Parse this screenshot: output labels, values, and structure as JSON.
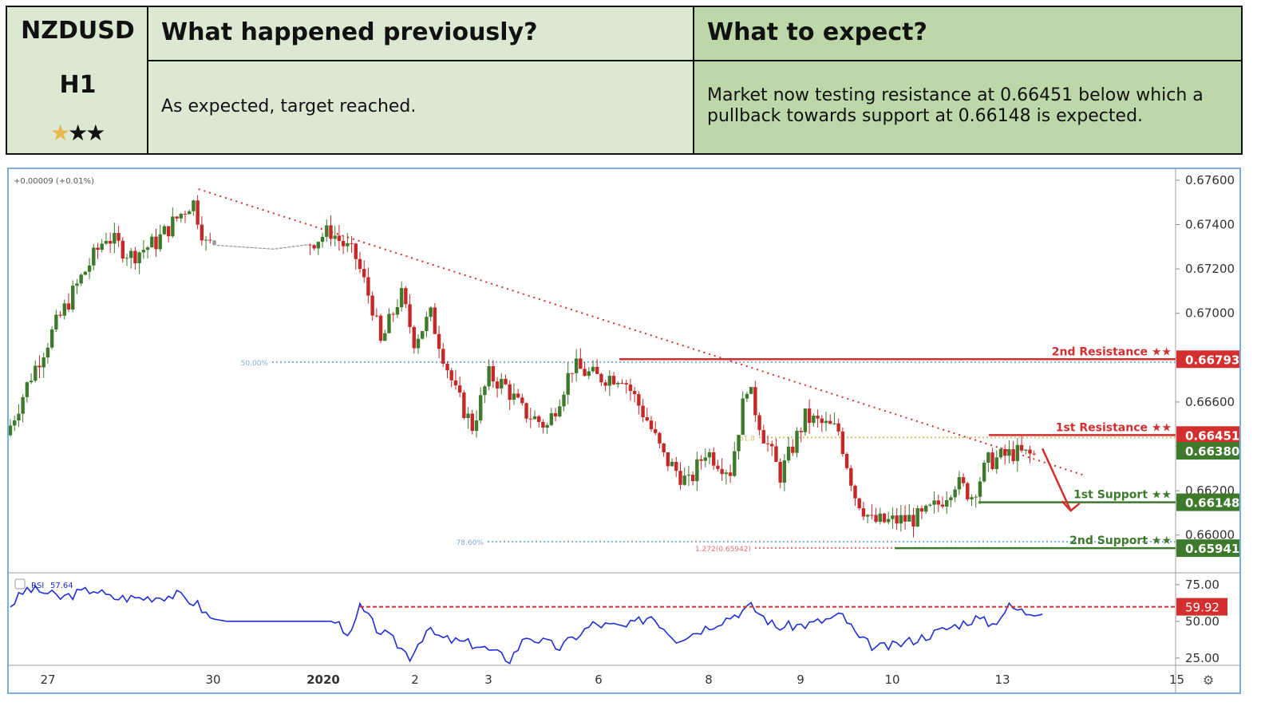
{
  "header": {
    "pair": "NZDUSD",
    "timeframe": "H1",
    "stars": [
      "★",
      "★",
      "★"
    ],
    "star_colors": [
      "#e8b64a",
      "#111111",
      "#111111"
    ],
    "prev_title": "What happened previously?",
    "prev_text": "As expected, target reached.",
    "expect_title": "What to expect?",
    "expect_text": "Market now testing resistance at 0.66451 below which a pullback towards support at 0.66148 is expected."
  },
  "chart_data": [
    {
      "type": "candlestick",
      "change_label": "+0.00009 (+0.01%)",
      "x_tick_labels": [
        "27",
        "30",
        "2020",
        "2",
        "3",
        "6",
        "8",
        "9",
        "10",
        "13",
        "15"
      ],
      "y_ticks": [
        0.676,
        0.674,
        0.672,
        0.67,
        0.668,
        0.666,
        0.664,
        0.662,
        0.66
      ],
      "y_tick_labels": [
        "0.67600",
        "0.67400",
        "0.67200",
        "0.67000",
        "0.66800",
        "0.66600",
        "0.66400",
        "0.66200",
        "0.66000"
      ],
      "ylim": [
        0.6583,
        0.6765
      ],
      "price_path": [
        [
          0,
          0.6645
        ],
        [
          1.5,
          0.6672
        ],
        [
          3,
          0.6695
        ],
        [
          4.5,
          0.6716
        ],
        [
          6,
          0.6735
        ],
        [
          7.5,
          0.6726
        ],
        [
          9,
          0.6732
        ],
        [
          11.2,
          0.6751
        ],
        [
          12,
          0.6731
        ],
        [
          16,
          0.6729
        ],
        [
          18,
          0.6731
        ],
        [
          19.5,
          0.6737
        ],
        [
          21,
          0.6725
        ],
        [
          22,
          0.6703
        ],
        [
          22.5,
          0.6686
        ],
        [
          23.7,
          0.6709
        ],
        [
          24.5,
          0.6688
        ],
        [
          25.5,
          0.6699
        ],
        [
          27,
          0.6664
        ],
        [
          28,
          0.6649
        ],
        [
          29,
          0.6672
        ],
        [
          30,
          0.6667
        ],
        [
          31,
          0.6656
        ],
        [
          32.5,
          0.6649
        ],
        [
          34,
          0.6676
        ],
        [
          35.5,
          0.6671
        ],
        [
          37,
          0.6672
        ],
        [
          38.5,
          0.6652
        ],
        [
          39.5,
          0.6635
        ],
        [
          41,
          0.6623
        ],
        [
          42,
          0.6638
        ],
        [
          43.5,
          0.6629
        ],
        [
          44.5,
          0.6668
        ],
        [
          45.5,
          0.6645
        ],
        [
          46.5,
          0.6627
        ],
        [
          48,
          0.6653
        ],
        [
          50,
          0.6647
        ],
        [
          51,
          0.6618
        ],
        [
          52,
          0.6606
        ],
        [
          53,
          0.6606
        ],
        [
          55,
          0.6608
        ],
        [
          56,
          0.6614
        ],
        [
          57,
          0.6624
        ],
        [
          58,
          0.6618
        ],
        [
          59,
          0.6633
        ],
        [
          60.5,
          0.6637
        ],
        [
          61.5,
          0.6636
        ]
      ],
      "lines": [
        {
          "label": "2nd Resistance ★★",
          "value": 0.66793,
          "value_label": "0.66793",
          "color": "#d32f2f"
        },
        {
          "label": "1st Resistance ★★",
          "value": 0.66451,
          "value_label": "0.66451",
          "color": "#d32f2f"
        },
        {
          "label": "1st Support ★★",
          "value": 0.66148,
          "value_label": "0.66148",
          "color": "#3d7a2b"
        },
        {
          "label": "2nd Support ★★",
          "value": 0.65941,
          "value_label": "0.65941",
          "color": "#3d7a2b"
        }
      ],
      "current_price": {
        "value": 0.6638,
        "label": "0.66380",
        "color": "#3d7a2b"
      },
      "fib_levels": [
        {
          "label": "50.00%",
          "value": 0.6678
        },
        {
          "label": "61.8",
          "value": 0.6644
        },
        {
          "label": "78.60%",
          "value": 0.6597
        },
        {
          "label": "1.272(0.65942)",
          "value": 0.65942
        }
      ],
      "trendline": {
        "from": [
          11.3,
          0.6756
        ],
        "to": [
          64.5,
          0.6627
        ]
      },
      "arrow": {
        "from": [
          62,
          0.6639
        ],
        "to": [
          63.7,
          0.6611
        ]
      }
    },
    {
      "type": "line",
      "indicator_label": "RSI",
      "indicator_value": "57.64",
      "y_ticks": [
        75,
        50,
        25
      ],
      "y_tick_labels": [
        "75.00",
        "50.00",
        "25.00"
      ],
      "ylim": [
        20,
        82
      ],
      "rsi_path": [
        [
          0,
          61
        ],
        [
          1,
          72
        ],
        [
          2,
          70
        ],
        [
          3,
          66
        ],
        [
          5,
          72
        ],
        [
          6,
          66
        ],
        [
          8,
          66
        ],
        [
          10,
          68
        ],
        [
          11.2,
          62
        ],
        [
          12,
          52
        ],
        [
          13,
          50
        ],
        [
          16,
          50
        ],
        [
          19.5,
          50
        ],
        [
          20.5,
          41
        ],
        [
          21,
          60
        ],
        [
          22,
          45
        ],
        [
          23,
          37
        ],
        [
          24,
          26
        ],
        [
          25,
          44
        ],
        [
          26,
          38
        ],
        [
          28,
          34
        ],
        [
          30,
          24
        ],
        [
          31,
          40
        ],
        [
          33,
          32
        ],
        [
          35,
          48
        ],
        [
          37,
          46
        ],
        [
          38.5,
          54
        ],
        [
          40,
          38
        ],
        [
          41,
          42
        ],
        [
          43,
          52
        ],
        [
          44.5,
          60
        ],
        [
          46,
          46
        ],
        [
          48,
          48
        ],
        [
          50,
          54
        ],
        [
          51,
          38
        ],
        [
          52,
          32
        ],
        [
          53,
          33
        ],
        [
          55,
          40
        ],
        [
          56,
          44
        ],
        [
          58,
          52
        ],
        [
          59,
          48
        ],
        [
          60,
          60
        ],
        [
          61,
          56
        ],
        [
          62,
          57.64
        ]
      ],
      "level": {
        "value": 59.92,
        "label": "59.92",
        "color": "#d32f2f"
      }
    }
  ]
}
